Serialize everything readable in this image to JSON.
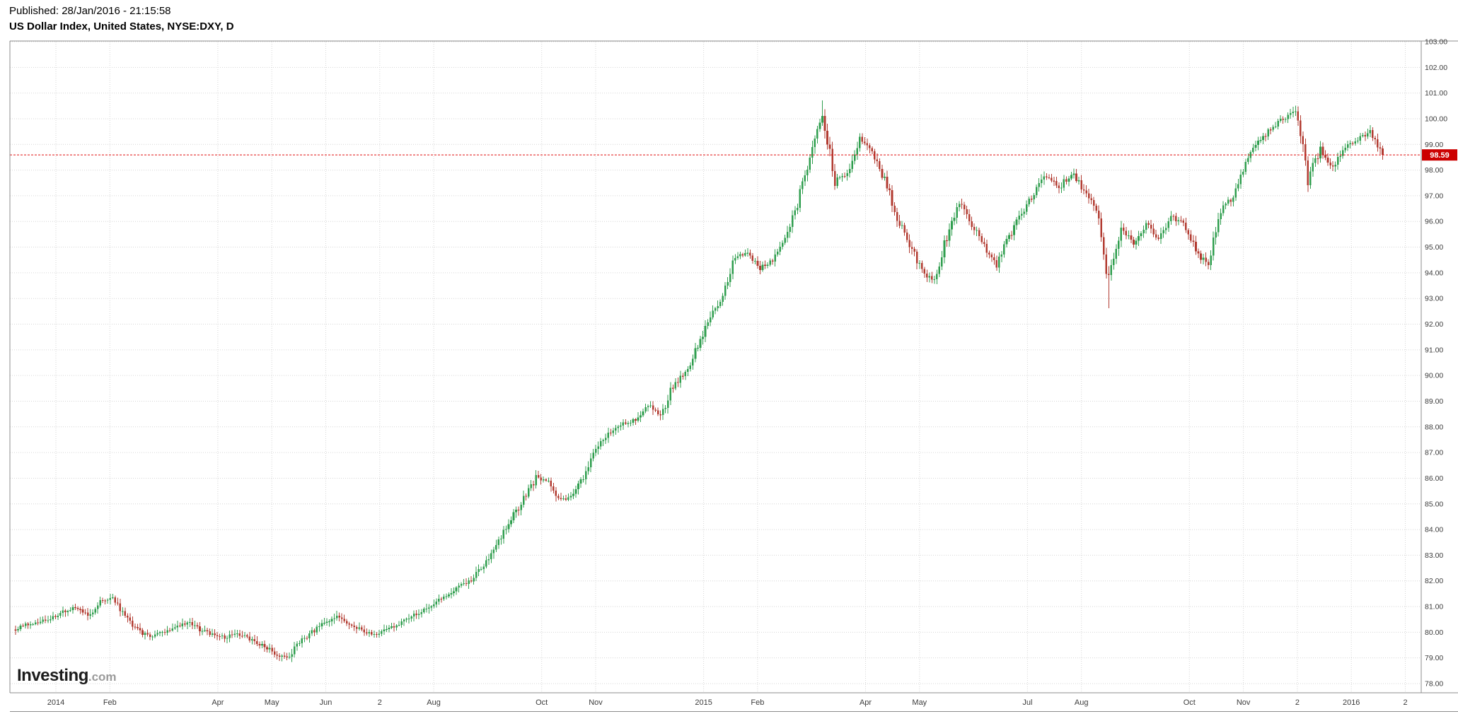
{
  "header": {
    "published": "Published: 28/Jan/2016 - 21:15:58",
    "title": "US Dollar Index, United States, NYSE:DXY, D"
  },
  "logo": {
    "main": "Investing",
    "suffix": ".com"
  },
  "chart_data": {
    "type": "candlestick",
    "title": "US Dollar Index, United States, NYSE:DXY, D",
    "symbol": "NYSE:DXY",
    "interval": "D",
    "last_price": 98.59,
    "last_price_label": "98.59",
    "y_axis": {
      "min": 78,
      "max": 103,
      "step": 1,
      "tick_labels": [
        "103.00",
        "102.00",
        "101.00",
        "100.00",
        "99.00",
        "98.00",
        "97.00",
        "96.00",
        "95.00",
        "94.00",
        "93.00",
        "92.00",
        "91.00",
        "90.00",
        "89.00",
        "88.00",
        "87.00",
        "86.00",
        "85.00",
        "84.00",
        "83.00",
        "82.00",
        "81.00",
        "80.00",
        "79.00",
        "78.00"
      ]
    },
    "x_axis": {
      "start": "Dec 2013",
      "end": "Feb 2016",
      "ticks": [
        {
          "label": "2014",
          "month": 0
        },
        {
          "label": "Feb",
          "month": 1
        },
        {
          "label": "Apr",
          "month": 3
        },
        {
          "label": "May",
          "month": 4
        },
        {
          "label": "Jun",
          "month": 5
        },
        {
          "label": "2",
          "month": 6
        },
        {
          "label": "Aug",
          "month": 7
        },
        {
          "label": "Oct",
          "month": 9
        },
        {
          "label": "Nov",
          "month": 10
        },
        {
          "label": "2015",
          "month": 12
        },
        {
          "label": "Feb",
          "month": 13
        },
        {
          "label": "Apr",
          "month": 15
        },
        {
          "label": "May",
          "month": 16
        },
        {
          "label": "Jul",
          "month": 18
        },
        {
          "label": "Aug",
          "month": 19
        },
        {
          "label": "Oct",
          "month": 21
        },
        {
          "label": "Nov",
          "month": 22
        },
        {
          "label": "2",
          "month": 23
        },
        {
          "label": "2016",
          "month": 24
        },
        {
          "label": "2",
          "month": 25
        }
      ]
    },
    "weekly_closes": [
      80.1,
      80.3,
      80.4,
      80.5,
      80.8,
      81.0,
      80.6,
      81.2,
      81.3,
      80.6,
      80.1,
      79.8,
      80.0,
      80.2,
      80.4,
      80.1,
      79.9,
      79.8,
      80.0,
      79.7,
      79.5,
      79.2,
      78.95,
      79.6,
      80.0,
      80.4,
      80.6,
      80.3,
      80.1,
      79.9,
      80.1,
      80.3,
      80.6,
      80.9,
      81.2,
      81.5,
      81.8,
      82.1,
      82.8,
      83.6,
      84.4,
      85.2,
      86.0,
      85.9,
      85.1,
      85.4,
      86.2,
      87.3,
      87.8,
      88.1,
      88.3,
      88.9,
      88.4,
      89.6,
      90.1,
      91.2,
      92.3,
      93.0,
      94.6,
      94.8,
      94.2,
      94.5,
      95.3,
      96.7,
      98.6,
      100.2,
      97.6,
      97.9,
      99.3,
      98.7,
      97.6,
      96.2,
      95.1,
      94.0,
      93.7,
      95.4,
      96.8,
      95.9,
      95.0,
      94.3,
      95.4,
      96.3,
      97.1,
      97.8,
      97.3,
      97.9,
      97.2,
      96.4,
      93.6,
      95.8,
      95.2,
      95.9,
      95.3,
      96.2,
      95.9,
      94.9,
      94.2,
      96.6,
      96.9,
      98.3,
      99.1,
      99.6,
      100.0,
      100.3,
      97.7,
      98.8,
      98.1,
      98.9,
      99.2,
      99.5,
      98.59
    ],
    "spikes": [
      {
        "week": 22,
        "type": "low",
        "price": 78.91
      },
      {
        "week": 65,
        "type": "high",
        "price": 100.71
      },
      {
        "week": 88,
        "type": "low",
        "price": 92.62
      },
      {
        "week": 103,
        "type": "high",
        "price": 100.51
      }
    ],
    "colors": {
      "up": "#2f9e4e",
      "down": "#b23b31",
      "last_price_line": "#e01010",
      "badge_bg": "#cc0000",
      "badge_text": "#ffffff",
      "grid": "#d6d6d6",
      "axis_text": "#3c3c3c",
      "frame": "#8c8c8c"
    }
  }
}
